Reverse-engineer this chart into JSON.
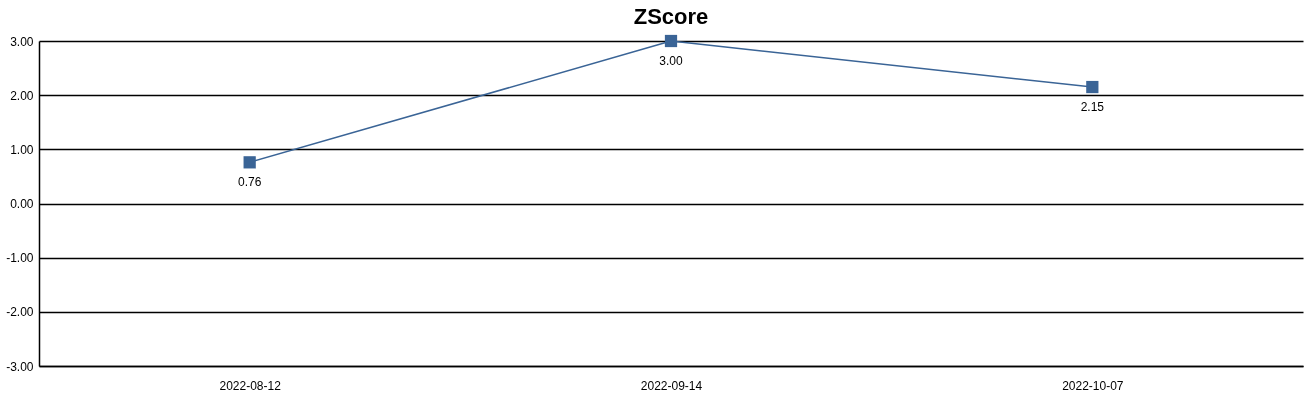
{
  "chart_data": {
    "type": "line",
    "title": "ZScore",
    "categories": [
      "2022-08-12",
      "2022-09-14",
      "2022-10-07"
    ],
    "series": [
      {
        "color": "#3a6496",
        "values": [
          0.76,
          3.0,
          2.15
        ],
        "value_labels": [
          "0.76",
          "3.00",
          "2.15"
        ]
      }
    ],
    "ylim": [
      -3,
      3
    ],
    "yticks": [
      {
        "value": -3,
        "label": "-3.00"
      },
      {
        "value": -2,
        "label": "-2.00"
      },
      {
        "value": -1,
        "label": "-1.00"
      },
      {
        "value": 0,
        "label": "0.00"
      },
      {
        "value": 1,
        "label": "1.00"
      },
      {
        "value": 2,
        "label": "2.00"
      },
      {
        "value": 3,
        "label": "3.00"
      }
    ],
    "grid": "y",
    "marker": "square",
    "line_style": "solid"
  }
}
